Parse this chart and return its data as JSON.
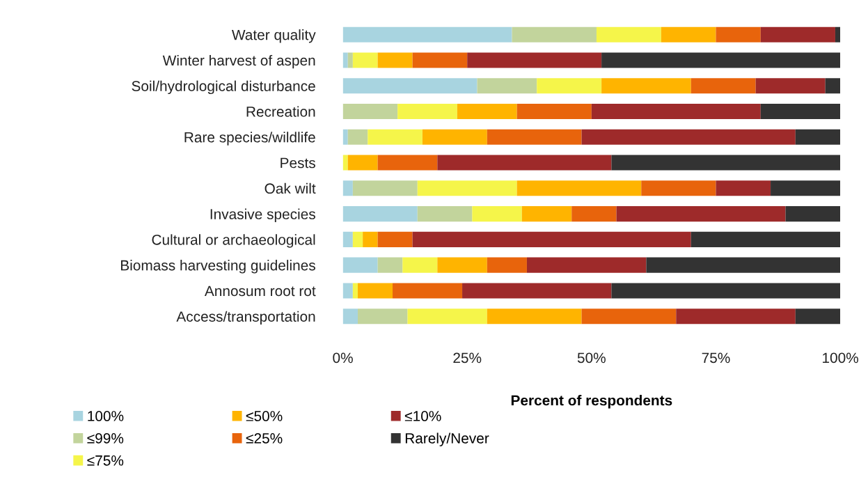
{
  "chart_data": {
    "type": "bar",
    "orientation": "horizontal",
    "stacked": true,
    "xlabel": "Percent of respondents",
    "categories": [
      "Water quality",
      "Winter harvest of aspen",
      "Soil/hydrological disturbance",
      "Recreation",
      "Rare species/wildlife",
      "Pests",
      "Oak wilt",
      "Invasive species",
      "Cultural or archaeological",
      "Biomass harvesting guidelines",
      "Annosum root rot",
      "Access/transportation"
    ],
    "series": [
      {
        "name": "100%",
        "color": "#a8d4e0",
        "values": [
          34,
          1,
          27,
          0,
          1,
          0,
          2,
          15,
          2,
          7,
          2,
          3
        ]
      },
      {
        "name": "≤99%",
        "color": "#c2d49c",
        "values": [
          17,
          1,
          12,
          11,
          4,
          0,
          13,
          11,
          0,
          5,
          0,
          10
        ]
      },
      {
        "name": "≤75%",
        "color": "#f5f54a",
        "values": [
          13,
          5,
          13,
          12,
          11,
          1,
          20,
          10,
          2,
          7,
          1,
          16
        ]
      },
      {
        "name": "≤50%",
        "color": "#ffb400",
        "values": [
          11,
          7,
          18,
          12,
          13,
          6,
          25,
          10,
          3,
          10,
          7,
          19
        ]
      },
      {
        "name": "≤25%",
        "color": "#e8640c",
        "values": [
          9,
          11,
          13,
          15,
          19,
          12,
          15,
          9,
          7,
          8,
          14,
          19
        ]
      },
      {
        "name": "≤10%",
        "color": "#9e2a2a",
        "values": [
          15,
          27,
          14,
          34,
          43,
          35,
          11,
          34,
          56,
          24,
          30,
          24
        ]
      },
      {
        "name": "Rarely/Never",
        "color": "#333333",
        "values": [
          1,
          48,
          3,
          16,
          9,
          46,
          14,
          11,
          30,
          39,
          46,
          9
        ]
      }
    ],
    "xlim": [
      0,
      100
    ],
    "xticks": [
      {
        "value": 0,
        "label": "0%"
      },
      {
        "value": 25,
        "label": "25%"
      },
      {
        "value": 50,
        "label": "50%"
      },
      {
        "value": 75,
        "label": "75%"
      },
      {
        "value": 100,
        "label": "100%"
      }
    ],
    "legend": "bottom left",
    "grid": false
  }
}
